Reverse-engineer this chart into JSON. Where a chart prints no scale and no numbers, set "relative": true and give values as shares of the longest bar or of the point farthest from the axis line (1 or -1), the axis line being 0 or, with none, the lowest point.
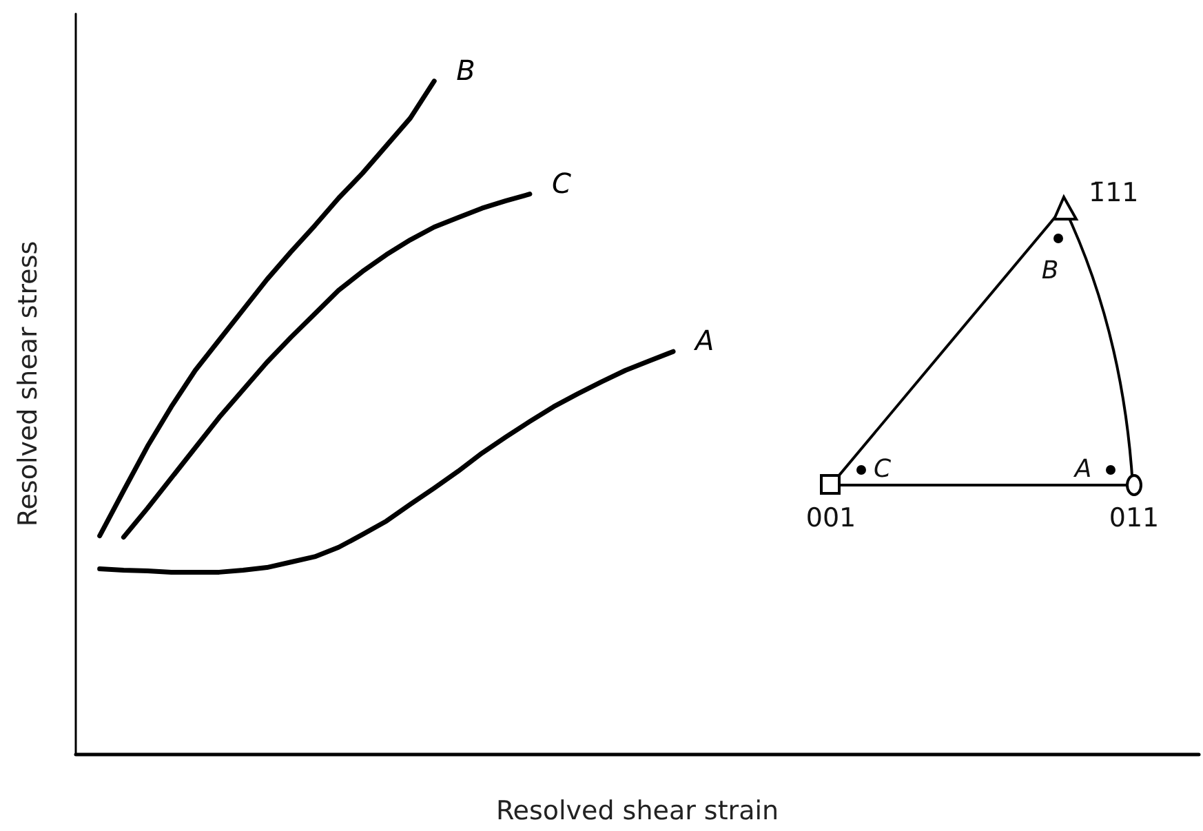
{
  "chart_data": {
    "type": "line",
    "relative": true,
    "xlabel": "Resolved shear strain",
    "ylabel": "Resolved shear stress",
    "grid": false,
    "legend": false,
    "marker": "none",
    "line_style": "solid",
    "categories": [
      null,
      null,
      null,
      null,
      null,
      null,
      null,
      null,
      null,
      null,
      null,
      null,
      null,
      null,
      null,
      null,
      null,
      null,
      null,
      null,
      null,
      null,
      null,
      null,
      null,
      null,
      null,
      null,
      null,
      null,
      null,
      null,
      null,
      null,
      null,
      null,
      null,
      null,
      null,
      null,
      null,
      null,
      null,
      null,
      null,
      null,
      null,
      null
    ],
    "series": [
      {
        "name": "B",
        "color": "#000000",
        "values": [
          null,
          0.324,
          0.391,
          0.457,
          0.516,
          0.57,
          0.615,
          0.66,
          0.705,
          0.746,
          0.785,
          0.826,
          0.863,
          0.904,
          0.945,
          1.0,
          null,
          null,
          null,
          null,
          null,
          null,
          null,
          null,
          null,
          null,
          null,
          null,
          null,
          null,
          null,
          null,
          null,
          null,
          null,
          null,
          null,
          null,
          null,
          null,
          null,
          null,
          null,
          null,
          null,
          null,
          null,
          null
        ]
      },
      {
        "name": "C",
        "color": "#000000",
        "values": [
          null,
          null,
          0.322,
          0.365,
          0.41,
          0.455,
          0.5,
          0.541,
          0.582,
          0.619,
          0.654,
          0.689,
          0.717,
          0.742,
          0.764,
          0.783,
          0.797,
          0.811,
          0.822,
          0.832,
          null,
          null,
          null,
          null,
          null,
          null,
          null,
          null,
          null,
          null,
          null,
          null,
          null,
          null,
          null,
          null,
          null,
          null,
          null,
          null,
          null,
          null,
          null,
          null,
          null,
          null,
          null,
          null
        ]
      },
      {
        "name": "A",
        "color": "#000000",
        "values": [
          null,
          0.275,
          0.273,
          0.272,
          0.27,
          0.27,
          0.27,
          0.273,
          0.277,
          0.285,
          0.293,
          0.307,
          0.326,
          0.346,
          0.371,
          0.395,
          0.42,
          0.447,
          0.471,
          0.494,
          0.516,
          0.535,
          0.553,
          0.57,
          0.584,
          0.598,
          null,
          null,
          null,
          null,
          null,
          null,
          null,
          null,
          null,
          null,
          null,
          null,
          null,
          null,
          null,
          null,
          null,
          null,
          null,
          null,
          null,
          null
        ]
      }
    ],
    "annotations": [
      "1̄11",
      "B",
      "C",
      "A",
      "001",
      "011"
    ]
  }
}
